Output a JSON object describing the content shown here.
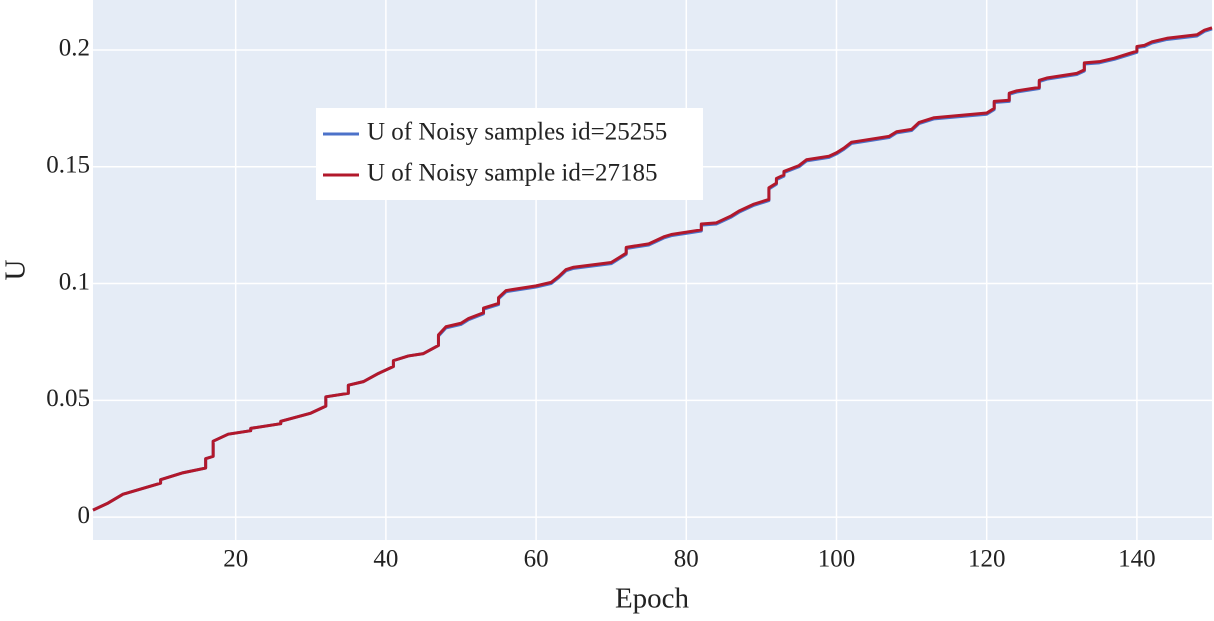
{
  "chart_data": {
    "type": "line",
    "x_label": "Epoch",
    "y_label": "U",
    "x": [
      1,
      3,
      5,
      10,
      10,
      13,
      16,
      16,
      17,
      17,
      19,
      22,
      22,
      26,
      26,
      30,
      32,
      32,
      35,
      35,
      37,
      39,
      41,
      41,
      43,
      45,
      47,
      47,
      48,
      50,
      51,
      53,
      53,
      55,
      55,
      56,
      57,
      60,
      62,
      63,
      64,
      65,
      70,
      71,
      72,
      72,
      75,
      77,
      78,
      82,
      82,
      84,
      86,
      87,
      89,
      91,
      91,
      92,
      92,
      93,
      93,
      95,
      96,
      99,
      100,
      101,
      102,
      103,
      107,
      108,
      110,
      111,
      113,
      120,
      121,
      121,
      123,
      123,
      124,
      127,
      127,
      128,
      132,
      133,
      133,
      135,
      137,
      139,
      140,
      140,
      141,
      142,
      144,
      148,
      149,
      150
    ],
    "series": [
      {
        "name": "U of Noisy samples id=25255",
        "color": "#4c72c9",
        "values": [
          0.003,
          0.006,
          0.0098,
          0.0145,
          0.016,
          0.019,
          0.021,
          0.025,
          0.026,
          0.0325,
          0.0355,
          0.037,
          0.038,
          0.04,
          0.041,
          0.0445,
          0.0475,
          0.0515,
          0.053,
          0.0565,
          0.058,
          0.0615,
          0.0645,
          0.067,
          0.069,
          0.07,
          0.0735,
          0.0775,
          0.081,
          0.0825,
          0.0845,
          0.087,
          0.089,
          0.091,
          0.0935,
          0.0965,
          0.097,
          0.0985,
          0.1,
          0.1025,
          0.1055,
          0.1065,
          0.1085,
          0.1105,
          0.1125,
          0.115,
          0.1165,
          0.1195,
          0.1205,
          0.1225,
          0.125,
          0.1255,
          0.1285,
          0.1305,
          0.1335,
          0.1355,
          0.1405,
          0.1425,
          0.1445,
          0.146,
          0.1475,
          0.15,
          0.1525,
          0.154,
          0.1555,
          0.1575,
          0.16,
          0.1605,
          0.1625,
          0.1645,
          0.1655,
          0.1685,
          0.1705,
          0.1725,
          0.1745,
          0.1775,
          0.178,
          0.181,
          0.182,
          0.1835,
          0.1865,
          0.1875,
          0.1895,
          0.191,
          0.194,
          0.1945,
          0.196,
          0.198,
          0.199,
          0.201,
          0.2015,
          0.203,
          0.2045,
          0.206,
          0.208,
          0.209
        ]
      },
      {
        "name": "U of Noisy sample id=27185",
        "color": "#b2182b",
        "values": [
          0.003,
          0.006,
          0.0098,
          0.0145,
          0.016,
          0.019,
          0.021,
          0.025,
          0.026,
          0.0325,
          0.0355,
          0.037,
          0.038,
          0.04,
          0.041,
          0.0445,
          0.0475,
          0.0515,
          0.053,
          0.0565,
          0.058,
          0.0615,
          0.0645,
          0.067,
          0.069,
          0.07,
          0.0735,
          0.078,
          0.0815,
          0.083,
          0.085,
          0.0875,
          0.0895,
          0.0915,
          0.094,
          0.097,
          0.0975,
          0.099,
          0.1005,
          0.103,
          0.106,
          0.107,
          0.109,
          0.111,
          0.113,
          0.1155,
          0.117,
          0.12,
          0.121,
          0.123,
          0.1255,
          0.126,
          0.129,
          0.131,
          0.134,
          0.136,
          0.141,
          0.143,
          0.145,
          0.1465,
          0.148,
          0.1505,
          0.153,
          0.1545,
          0.156,
          0.158,
          0.1605,
          0.161,
          0.163,
          0.165,
          0.166,
          0.169,
          0.171,
          0.173,
          0.175,
          0.178,
          0.1785,
          0.1815,
          0.1825,
          0.184,
          0.187,
          0.188,
          0.19,
          0.1915,
          0.1945,
          0.195,
          0.1965,
          0.1985,
          0.1995,
          0.2015,
          0.202,
          0.2035,
          0.205,
          0.2065,
          0.2085,
          0.2095
        ]
      }
    ],
    "xlim": [
      1,
      150
    ],
    "ylim": [
      -0.0098,
      0.2214
    ],
    "xticks": [
      20,
      40,
      60,
      80,
      100,
      120,
      140
    ],
    "yticks": [
      0,
      0.05,
      0.1,
      0.15,
      0.2
    ],
    "grid": true,
    "legend": "upper left",
    "background": "#e5ecf6"
  }
}
